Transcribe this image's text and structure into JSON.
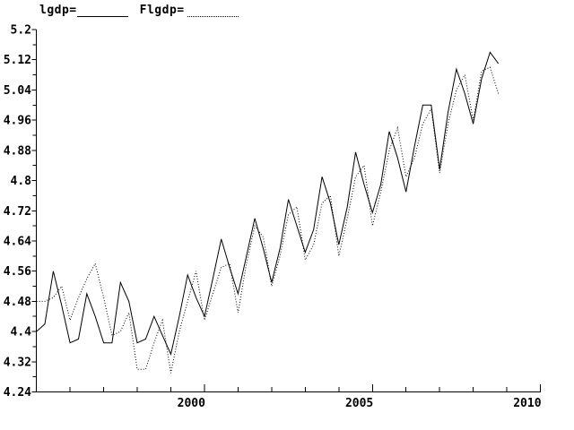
{
  "window": {
    "background": "#ffffff",
    "foreground": "#000000"
  },
  "legend": {
    "items": [
      {
        "label": "lgdp=",
        "line_style": "solid"
      },
      {
        "label": "Flgdp=",
        "line_style": "dotted"
      }
    ]
  },
  "chart_data": {
    "type": "line",
    "title": "",
    "grid": false,
    "legend_position": "top-left",
    "x_axis": {
      "range": [
        1995,
        2010
      ],
      "major_ticks": [
        2000,
        2005,
        2010
      ],
      "major_tick_labels": [
        "2000",
        "2005",
        "2010"
      ],
      "minor_tick_interval_years": 1
    },
    "y_axis": {
      "range": [
        4.24,
        5.2
      ],
      "major_tick_interval": 0.08,
      "minor_tick_interval": 0.04,
      "tick_labels": [
        "5.2",
        "5.12",
        "5.04",
        "4.96",
        "4.88",
        "4.8",
        "4.72",
        "4.64",
        "4.56",
        "4.48",
        "4.4",
        "4.32",
        "4.24"
      ]
    },
    "x_start": 1995.0,
    "x_step_years": 0.25,
    "quarters": [
      "1995Q1",
      "1995Q2",
      "1995Q3",
      "1995Q4",
      "1996Q1",
      "1996Q2",
      "1996Q3",
      "1996Q4",
      "1997Q1",
      "1997Q2",
      "1997Q3",
      "1997Q4",
      "1998Q1",
      "1998Q2",
      "1998Q3",
      "1998Q4",
      "1999Q1",
      "1999Q2",
      "1999Q3",
      "1999Q4",
      "2000Q1",
      "2000Q2",
      "2000Q3",
      "2000Q4",
      "2001Q1",
      "2001Q2",
      "2001Q3",
      "2001Q4",
      "2002Q1",
      "2002Q2",
      "2002Q3",
      "2002Q4",
      "2003Q1",
      "2003Q2",
      "2003Q3",
      "2003Q4",
      "2004Q1",
      "2004Q2",
      "2004Q3",
      "2004Q4",
      "2005Q1",
      "2005Q2",
      "2005Q3",
      "2005Q4",
      "2006Q1",
      "2006Q2",
      "2006Q3",
      "2006Q4",
      "2007Q1",
      "2007Q2",
      "2007Q3",
      "2007Q4",
      "2008Q1",
      "2008Q2",
      "2008Q3",
      "2008Q4"
    ],
    "series": [
      {
        "name": "lgdp",
        "style": "solid",
        "color": "#000000",
        "values": [
          4.4,
          4.42,
          4.56,
          4.47,
          4.37,
          4.38,
          4.5,
          4.44,
          4.37,
          4.37,
          4.53,
          4.48,
          4.37,
          4.38,
          4.44,
          4.39,
          4.34,
          4.44,
          4.55,
          4.49,
          4.44,
          4.54,
          4.645,
          4.57,
          4.5,
          4.6,
          4.7,
          4.62,
          4.53,
          4.62,
          4.75,
          4.68,
          4.61,
          4.67,
          4.81,
          4.74,
          4.63,
          4.73,
          4.875,
          4.79,
          4.715,
          4.79,
          4.93,
          4.86,
          4.77,
          4.89,
          5.0,
          5.0,
          4.83,
          4.98,
          5.095,
          5.03,
          4.95,
          5.07,
          5.14,
          5.11
        ]
      },
      {
        "name": "Flgdp",
        "style": "dotted",
        "color": "#000000",
        "values": [
          4.48,
          4.48,
          4.49,
          4.52,
          4.43,
          4.49,
          4.54,
          4.58,
          4.49,
          4.39,
          4.4,
          4.45,
          4.3,
          4.3,
          4.37,
          4.43,
          4.29,
          4.4,
          4.48,
          4.56,
          4.43,
          4.5,
          4.57,
          4.58,
          4.45,
          4.58,
          4.68,
          4.65,
          4.52,
          4.6,
          4.71,
          4.73,
          4.59,
          4.63,
          4.74,
          4.76,
          4.6,
          4.7,
          4.81,
          4.84,
          4.68,
          4.77,
          4.88,
          4.94,
          4.81,
          4.86,
          4.95,
          4.99,
          4.82,
          4.95,
          5.04,
          5.08,
          4.96,
          5.09,
          5.1,
          5.03
        ]
      }
    ]
  }
}
